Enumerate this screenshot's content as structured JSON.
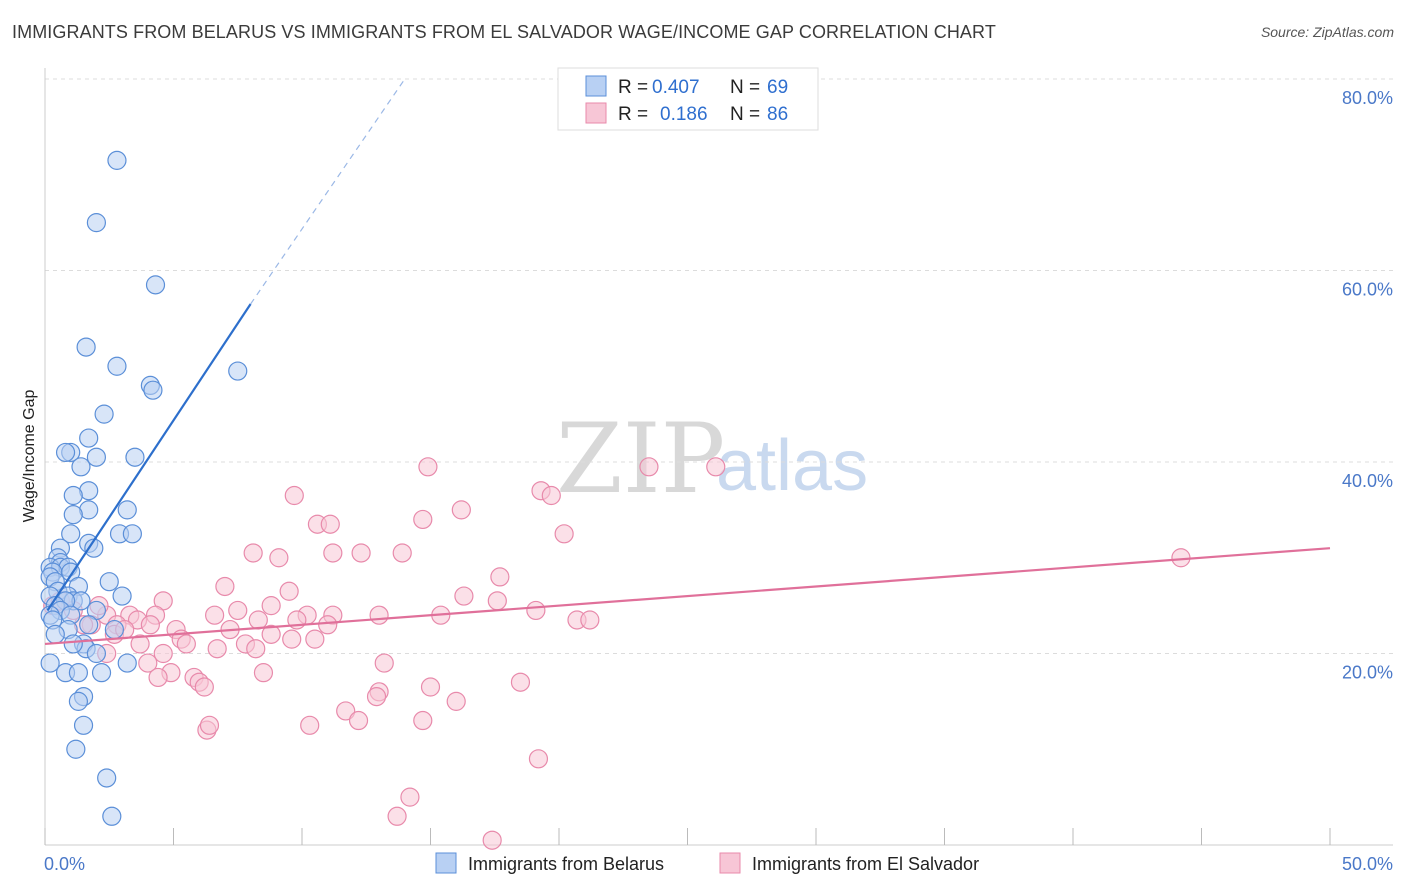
{
  "title": "IMMIGRANTS FROM BELARUS VS IMMIGRANTS FROM EL SALVADOR WAGE/INCOME GAP CORRELATION CHART",
  "source": "Source: ZipAtlas.com",
  "watermark": {
    "zip": "ZIP",
    "atlas": "atlas"
  },
  "colors": {
    "belarus_fill": "#b8d0f3",
    "belarus_stroke": "#5b8fd8",
    "belarus_line": "#2d6fcc",
    "elsalvador_fill": "#f7c6d6",
    "elsalvador_stroke": "#e88aab",
    "elsalvador_line": "#e0709a",
    "grid": "#dcdcdc",
    "axis_text": "#4a78c8"
  },
  "legend": {
    "items": [
      {
        "r_label": "R =",
        "r_value": "0.407",
        "n_label": "N =",
        "n_value": "69",
        "series": "belarus"
      },
      {
        "r_label": "R =",
        "r_value": "0.186",
        "n_label": "N =",
        "n_value": "86",
        "series": "elsalvador"
      }
    ]
  },
  "chart_data": {
    "type": "scatter",
    "title": "IMMIGRANTS FROM BELARUS VS IMMIGRANTS FROM EL SALVADOR WAGE/INCOME GAP CORRELATION CHART",
    "xlabel": "",
    "ylabel": "Wage/Income Gap",
    "xlim": [
      0,
      50
    ],
    "ylim": [
      0,
      80
    ],
    "x_tick_labels": [
      "0.0%",
      "50.0%"
    ],
    "y_tick_labels": [
      "20.0%",
      "40.0%",
      "60.0%",
      "80.0%"
    ],
    "y_ticks": [
      20,
      40,
      60,
      80
    ],
    "grid": true,
    "legend_position": "top-center",
    "series": [
      {
        "name": "Immigrants from Belarus",
        "r": 0.407,
        "n": 69,
        "trend": {
          "x0": 0.1,
          "y0": 24.5,
          "x1": 8.0,
          "y1": 56.5,
          "dash_to_x": 14.0,
          "dash_to_y": 80.0
        },
        "points": [
          [
            2.8,
            71.5
          ],
          [
            2.0,
            65.0
          ],
          [
            4.3,
            58.5
          ],
          [
            1.6,
            52.0
          ],
          [
            2.8,
            50.0
          ],
          [
            7.5,
            49.5
          ],
          [
            4.1,
            48.0
          ],
          [
            4.2,
            47.5
          ],
          [
            2.3,
            45.0
          ],
          [
            1.7,
            42.5
          ],
          [
            1.0,
            41.0
          ],
          [
            0.8,
            41.0
          ],
          [
            2.0,
            40.5
          ],
          [
            3.5,
            40.5
          ],
          [
            1.4,
            39.5
          ],
          [
            1.7,
            37.0
          ],
          [
            1.1,
            36.5
          ],
          [
            1.7,
            35.0
          ],
          [
            3.2,
            35.0
          ],
          [
            1.1,
            34.5
          ],
          [
            1.0,
            32.5
          ],
          [
            2.9,
            32.5
          ],
          [
            3.4,
            32.5
          ],
          [
            1.7,
            31.5
          ],
          [
            1.9,
            31.0
          ],
          [
            0.6,
            31.0
          ],
          [
            0.5,
            30.0
          ],
          [
            0.6,
            29.5
          ],
          [
            0.2,
            29.0
          ],
          [
            0.6,
            29.0
          ],
          [
            0.9,
            29.0
          ],
          [
            1.0,
            28.5
          ],
          [
            0.3,
            28.5
          ],
          [
            0.2,
            28.0
          ],
          [
            0.4,
            27.5
          ],
          [
            2.5,
            27.5
          ],
          [
            1.3,
            27.0
          ],
          [
            0.5,
            26.5
          ],
          [
            0.2,
            26.0
          ],
          [
            0.9,
            26.0
          ],
          [
            1.1,
            25.5
          ],
          [
            1.4,
            25.5
          ],
          [
            3.0,
            26.0
          ],
          [
            0.8,
            25.5
          ],
          [
            0.4,
            25.0
          ],
          [
            0.6,
            24.5
          ],
          [
            2.0,
            24.5
          ],
          [
            0.2,
            24.0
          ],
          [
            1.0,
            24.0
          ],
          [
            0.3,
            23.5
          ],
          [
            1.5,
            21.0
          ],
          [
            1.6,
            20.5
          ],
          [
            2.0,
            20.0
          ],
          [
            3.2,
            19.0
          ],
          [
            0.2,
            19.0
          ],
          [
            0.8,
            18.0
          ],
          [
            1.3,
            18.0
          ],
          [
            2.2,
            18.0
          ],
          [
            1.5,
            15.5
          ],
          [
            1.3,
            15.0
          ],
          [
            1.5,
            12.5
          ],
          [
            1.2,
            10.0
          ],
          [
            2.4,
            7.0
          ],
          [
            2.6,
            3.0
          ],
          [
            0.9,
            22.5
          ],
          [
            1.7,
            23.0
          ],
          [
            0.4,
            22.0
          ],
          [
            1.1,
            21.0
          ],
          [
            2.7,
            22.5
          ]
        ]
      },
      {
        "name": "Immigrants from El Salvador",
        "r": 0.186,
        "n": 86,
        "trend": {
          "x0": 0.0,
          "y0": 21.0,
          "x1": 50.0,
          "y1": 31.0
        },
        "points": [
          [
            14.9,
            39.5
          ],
          [
            23.5,
            39.5
          ],
          [
            26.1,
            39.5
          ],
          [
            19.3,
            37.0
          ],
          [
            19.7,
            36.5
          ],
          [
            9.7,
            36.5
          ],
          [
            16.2,
            35.0
          ],
          [
            14.7,
            34.0
          ],
          [
            10.6,
            33.5
          ],
          [
            11.1,
            33.5
          ],
          [
            20.2,
            32.5
          ],
          [
            8.1,
            30.5
          ],
          [
            11.2,
            30.5
          ],
          [
            12.3,
            30.5
          ],
          [
            13.9,
            30.5
          ],
          [
            9.1,
            30.0
          ],
          [
            44.2,
            30.0
          ],
          [
            17.7,
            28.0
          ],
          [
            7.0,
            27.0
          ],
          [
            9.5,
            26.5
          ],
          [
            16.3,
            26.0
          ],
          [
            17.6,
            25.5
          ],
          [
            4.6,
            25.5
          ],
          [
            8.8,
            25.0
          ],
          [
            7.5,
            24.5
          ],
          [
            19.1,
            24.5
          ],
          [
            6.6,
            24.0
          ],
          [
            10.2,
            24.0
          ],
          [
            11.2,
            24.0
          ],
          [
            13.0,
            24.0
          ],
          [
            15.4,
            24.0
          ],
          [
            2.4,
            24.0
          ],
          [
            3.3,
            24.0
          ],
          [
            4.3,
            24.0
          ],
          [
            3.6,
            23.5
          ],
          [
            8.3,
            23.5
          ],
          [
            9.8,
            23.5
          ],
          [
            11.0,
            23.0
          ],
          [
            20.7,
            23.5
          ],
          [
            21.2,
            23.5
          ],
          [
            1.8,
            23.0
          ],
          [
            2.8,
            23.0
          ],
          [
            4.1,
            23.0
          ],
          [
            5.1,
            22.5
          ],
          [
            5.3,
            21.5
          ],
          [
            7.2,
            22.5
          ],
          [
            8.8,
            22.0
          ],
          [
            9.6,
            21.5
          ],
          [
            10.5,
            21.5
          ],
          [
            5.5,
            21.0
          ],
          [
            7.8,
            21.0
          ],
          [
            6.7,
            20.5
          ],
          [
            2.7,
            22.0
          ],
          [
            3.7,
            21.0
          ],
          [
            4.6,
            20.0
          ],
          [
            0.3,
            25.0
          ],
          [
            0.6,
            25.5
          ],
          [
            1.1,
            24.5
          ],
          [
            1.5,
            23.0
          ],
          [
            2.4,
            20.0
          ],
          [
            4.0,
            19.0
          ],
          [
            13.2,
            19.0
          ],
          [
            4.9,
            18.0
          ],
          [
            5.8,
            17.5
          ],
          [
            4.4,
            17.5
          ],
          [
            8.5,
            18.0
          ],
          [
            6.0,
            17.0
          ],
          [
            6.2,
            16.5
          ],
          [
            15.0,
            16.5
          ],
          [
            18.5,
            17.0
          ],
          [
            13.0,
            16.0
          ],
          [
            12.9,
            15.5
          ],
          [
            16.0,
            15.0
          ],
          [
            11.7,
            14.0
          ],
          [
            14.7,
            13.0
          ],
          [
            12.2,
            13.0
          ],
          [
            6.3,
            12.0
          ],
          [
            6.4,
            12.5
          ],
          [
            10.3,
            12.5
          ],
          [
            19.2,
            9.0
          ],
          [
            14.2,
            5.0
          ],
          [
            13.7,
            3.0
          ],
          [
            17.4,
            0.5
          ],
          [
            8.2,
            20.5
          ],
          [
            3.1,
            22.5
          ],
          [
            2.1,
            25.0
          ]
        ]
      }
    ]
  },
  "bottom_legend": {
    "items": [
      {
        "label": "Immigrants from Belarus",
        "series": "belarus"
      },
      {
        "label": "Immigrants from El Salvador",
        "series": "elsalvador"
      }
    ]
  }
}
